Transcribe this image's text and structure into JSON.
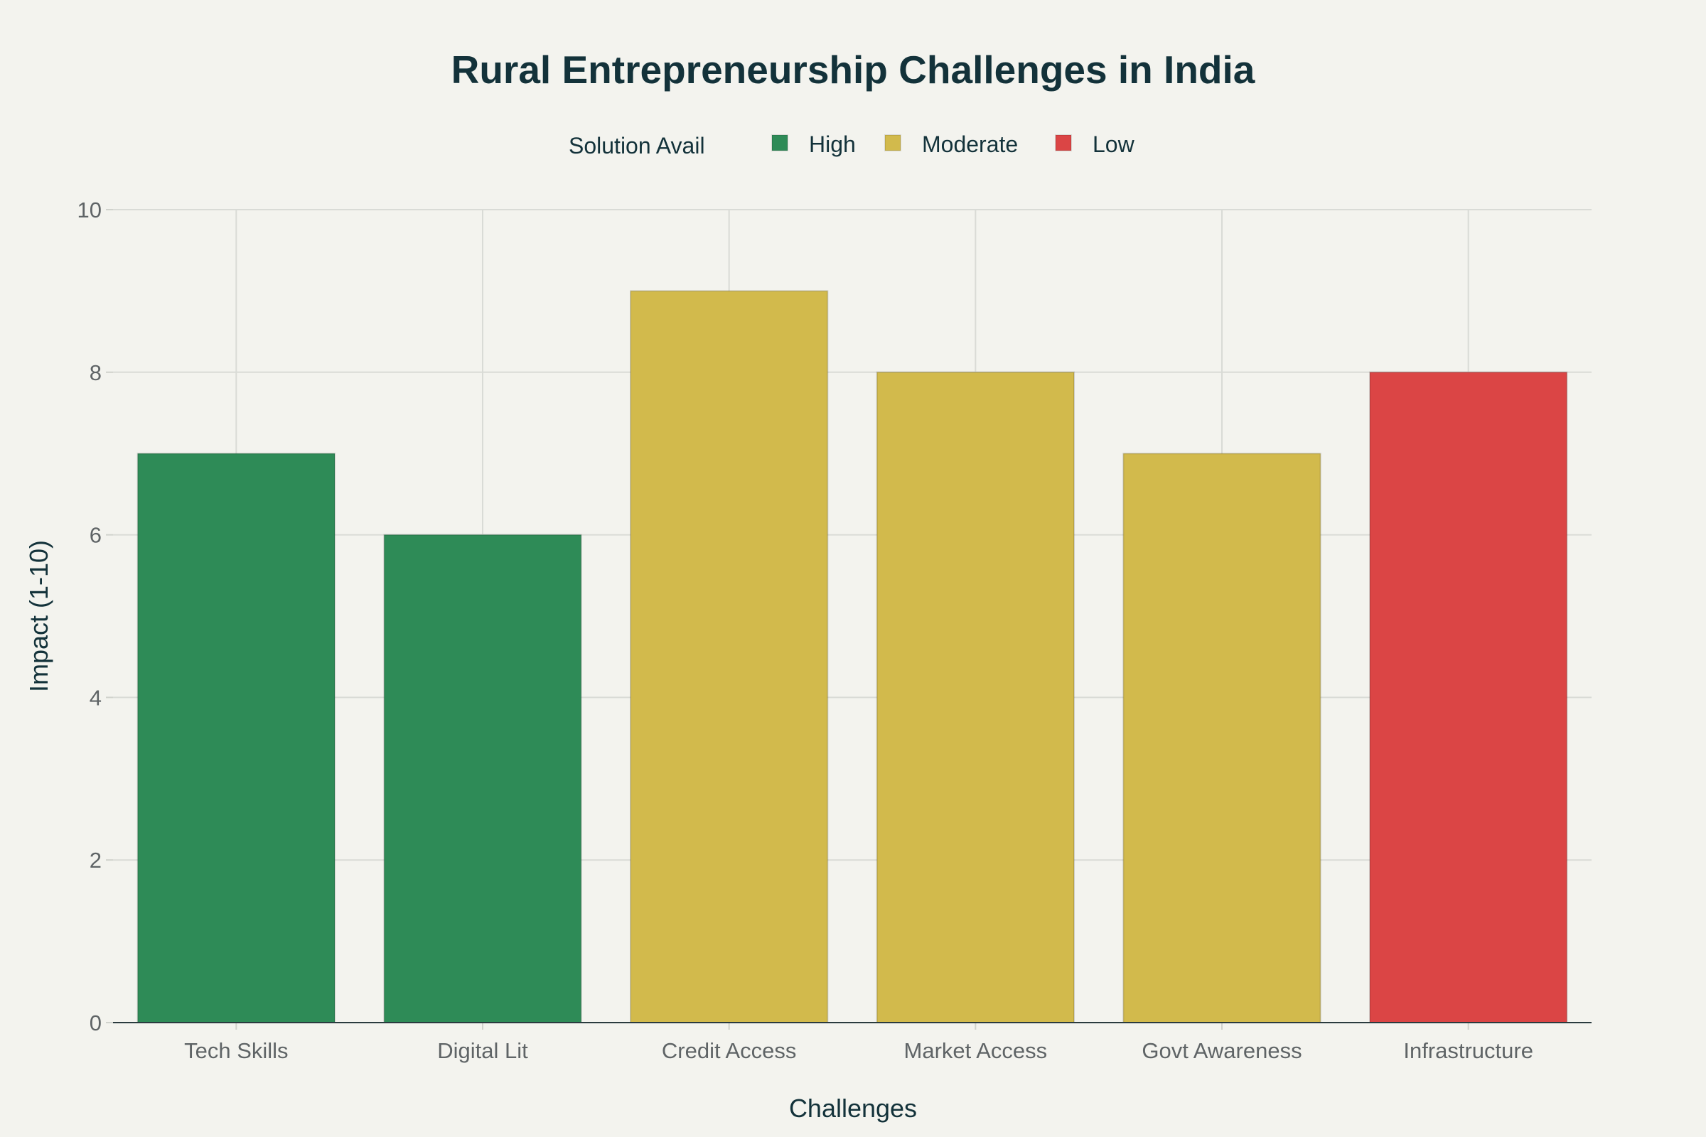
{
  "chart_data": {
    "type": "bar",
    "title": "Rural Entrepreneurship Challenges in India",
    "xlabel": "Challenges",
    "ylabel": "Impact (1-10)",
    "ylim": [
      0,
      10
    ],
    "yticks": [
      0,
      2,
      4,
      6,
      8,
      10
    ],
    "grid": true,
    "categories": [
      "Tech Skills",
      "Digital Lit",
      "Credit Access",
      "Market Access",
      "Govt Awareness",
      "Infrastructure"
    ],
    "values": [
      7,
      6,
      9,
      8,
      7,
      8
    ],
    "groups": [
      "High",
      "High",
      "Moderate",
      "Moderate",
      "Moderate",
      "Low"
    ],
    "legend": {
      "title": "Solution Avail",
      "placement": "top-center",
      "entries": [
        {
          "name": "High",
          "color": "#2e8b57"
        },
        {
          "name": "Moderate",
          "color": "#d2ba4c"
        },
        {
          "name": "Low",
          "color": "#db4545"
        }
      ]
    }
  }
}
